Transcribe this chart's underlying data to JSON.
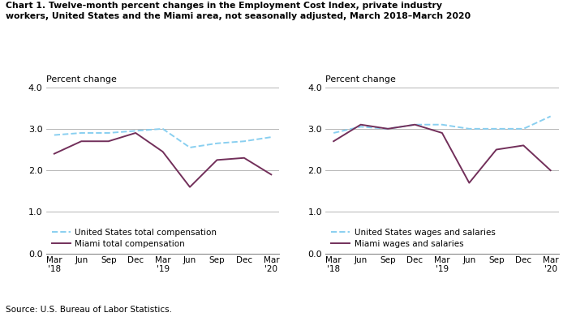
{
  "title_line1": "Chart 1. Twelve-month percent changes in the Employment Cost Index, private industry",
  "title_line2": "workers, United States and the Miami area, not seasonally adjusted, March 2018–March 2020",
  "source": "Source: U.S. Bureau of Labor Statistics.",
  "ylabel": "Percent change",
  "ylim": [
    0.0,
    4.0
  ],
  "yticks": [
    0.0,
    1.0,
    2.0,
    3.0,
    4.0
  ],
  "x_labels": [
    "Mar\n'18",
    "Jun",
    "Sep",
    "Dec",
    "Mar\n'19",
    "Jun",
    "Sep",
    "Dec",
    "Mar\n'20"
  ],
  "us_total_comp": [
    2.85,
    2.9,
    2.9,
    2.95,
    3.0,
    2.55,
    2.65,
    2.7,
    2.8
  ],
  "miami_total_comp": [
    2.4,
    2.7,
    2.7,
    2.9,
    2.45,
    1.6,
    2.25,
    2.3,
    1.9
  ],
  "us_wages_salaries": [
    2.9,
    3.05,
    3.0,
    3.1,
    3.1,
    3.0,
    3.0,
    3.0,
    3.3
  ],
  "miami_wages_salaries": [
    2.7,
    3.1,
    3.0,
    3.1,
    2.9,
    1.7,
    2.5,
    2.6,
    2.0
  ],
  "us_color": "#89CFF0",
  "miami_color": "#722F5A",
  "legend1_labels": [
    "United States total compensation",
    "Miami total compensation"
  ],
  "legend2_labels": [
    "United States wages and salaries",
    "Miami wages and salaries"
  ]
}
